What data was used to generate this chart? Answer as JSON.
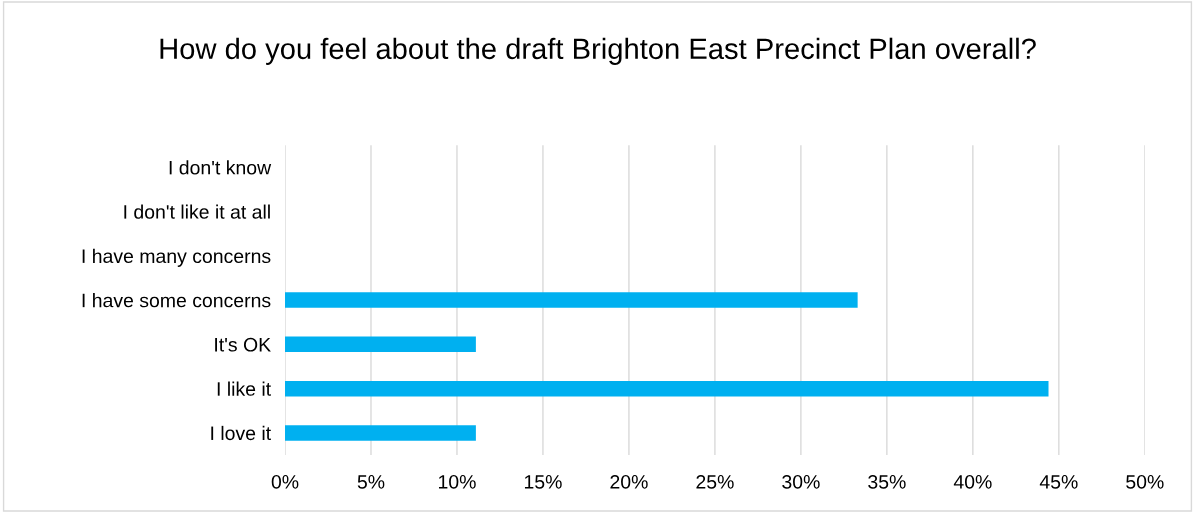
{
  "chart_data": {
    "type": "bar",
    "orientation": "horizontal",
    "title": "How do you feel about the draft Brighton East Precinct Plan overall?",
    "categories": [
      "I don't know",
      "I don't like it at all",
      "I have many concerns",
      "I have some concerns",
      "It's OK",
      "I like it",
      "I love it"
    ],
    "values": [
      0,
      0,
      0,
      33.3,
      11.1,
      44.4,
      11.1
    ],
    "color": "#00b0f0",
    "xlim": [
      0,
      50
    ],
    "xticks": [
      {
        "value": 0,
        "label": "0%"
      },
      {
        "value": 5,
        "label": "5%"
      },
      {
        "value": 10,
        "label": "10%"
      },
      {
        "value": 15,
        "label": "15%"
      },
      {
        "value": 20,
        "label": "20%"
      },
      {
        "value": 25,
        "label": "25%"
      },
      {
        "value": 30,
        "label": "30%"
      },
      {
        "value": 35,
        "label": "35%"
      },
      {
        "value": 40,
        "label": "40%"
      },
      {
        "value": 45,
        "label": "45%"
      },
      {
        "value": 50,
        "label": "50%"
      }
    ],
    "grid": "x",
    "legend": false
  }
}
